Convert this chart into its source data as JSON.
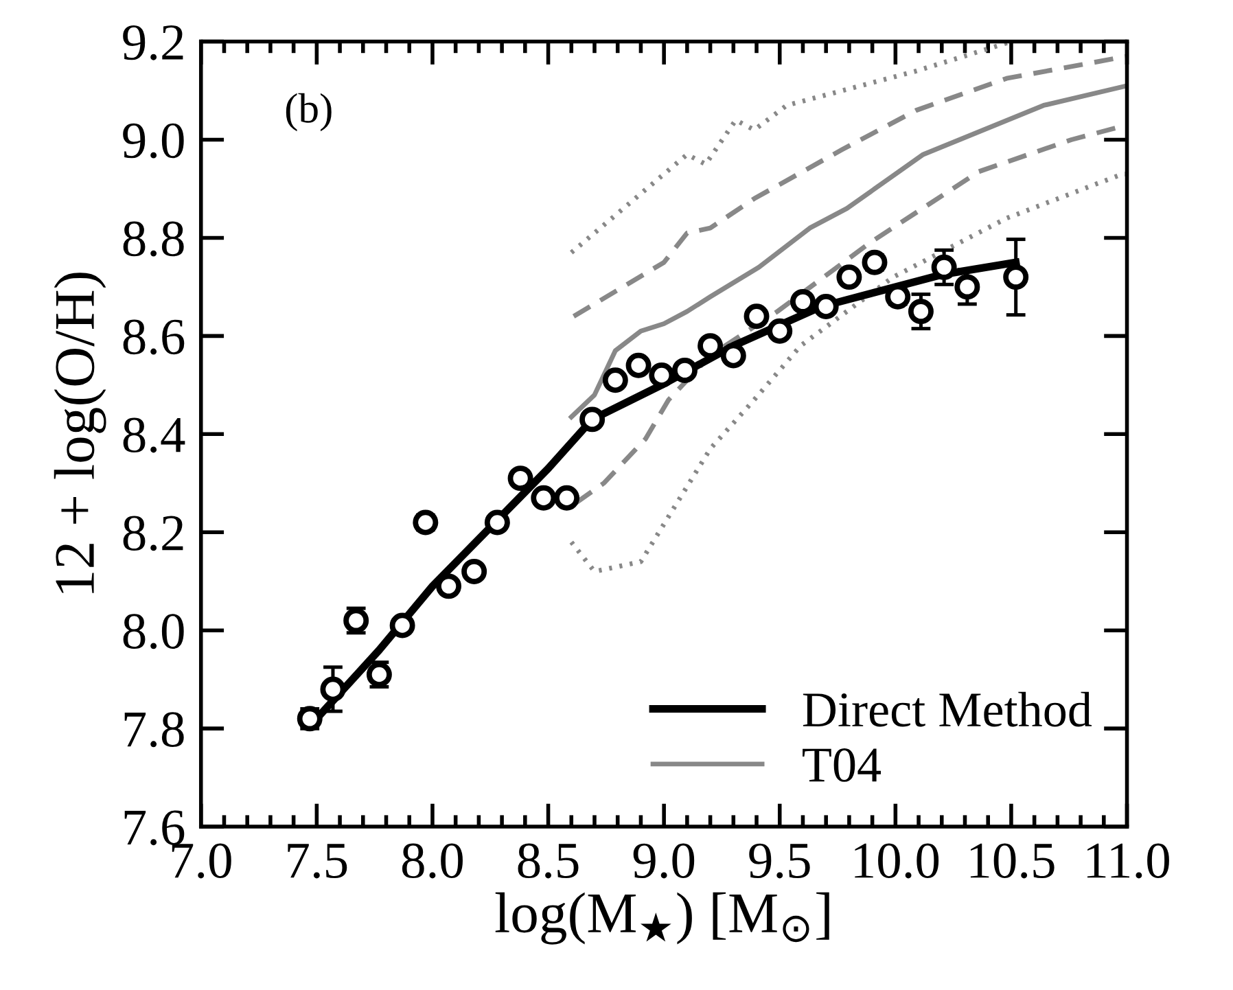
{
  "chart_data": {
    "type": "line",
    "xlabel": "log(M$_{★}$) [M$_{⊙}$]",
    "ylabel": "12 + log(O/H)",
    "xlim": [
      7.0,
      11.0
    ],
    "xticks": [
      {
        "value": 7.0,
        "label": "7.0"
      },
      7.5,
      {
        "value": 8.0,
        "label": "8.0"
      },
      8.5,
      {
        "value": 9.0,
        "label": "9.0"
      },
      9.5,
      {
        "value": 10.0,
        "label": "10.0"
      },
      10.5,
      {
        "value": 11.0,
        "label": "11.0"
      }
    ],
    "ylim": [
      7.6,
      9.2
    ],
    "yticks": [
      7.6,
      7.8,
      {
        "value": 8.0,
        "label": "8.0"
      },
      8.2,
      8.4,
      8.6,
      8.8,
      {
        "value": 9.0,
        "label": "9.0"
      },
      9.2
    ],
    "grid": false,
    "legend": "bottom right",
    "annotations": [
      "(b)"
    ],
    "series": [
      {
        "type": "line",
        "name": "T04",
        "color": "#888888",
        "line_style": "solid",
        "x": [
          8.6,
          8.7,
          8.79,
          8.9,
          9.0,
          9.1,
          9.2,
          9.41,
          9.63,
          9.79,
          10.12,
          10.64,
          11.0
        ],
        "values": [
          8.435,
          8.48,
          8.57,
          8.61,
          8.625,
          8.65,
          8.68,
          8.74,
          8.82,
          8.86,
          8.97,
          9.07,
          9.11
        ]
      },
      {
        "type": "line",
        "color": "#888888",
        "line_style": "dashed",
        "x": [
          8.61,
          9.0,
          9.1,
          9.2,
          9.39,
          9.77,
          10.09,
          10.48,
          11.0
        ],
        "values": [
          8.64,
          8.75,
          8.81,
          8.82,
          8.88,
          8.98,
          9.06,
          9.125,
          9.17
        ]
      },
      {
        "type": "line",
        "color": "#888888",
        "line_style": "dashed",
        "x": [
          8.62,
          8.74,
          8.92,
          9.02,
          9.2,
          9.49,
          9.89,
          10.36,
          10.76,
          11.0
        ],
        "values": [
          8.26,
          8.3,
          8.39,
          8.47,
          8.56,
          8.65,
          8.79,
          8.935,
          9.0,
          9.03
        ]
      },
      {
        "type": "line",
        "color": "#888888",
        "line_style": "dotted",
        "x": [
          8.6,
          8.9,
          9.1,
          9.18,
          9.31,
          9.39,
          9.53,
          10.09,
          10.5
        ],
        "values": [
          8.77,
          8.89,
          8.97,
          8.95,
          9.04,
          9.02,
          9.07,
          9.14,
          9.2
        ]
      },
      {
        "type": "line",
        "color": "#888888",
        "line_style": "dotted",
        "x": [
          8.6,
          8.7,
          8.9,
          9.2,
          9.39,
          9.59,
          9.99,
          10.48,
          10.98,
          11.0
        ],
        "values": [
          8.18,
          8.12,
          8.14,
          8.37,
          8.47,
          8.58,
          8.72,
          8.84,
          8.93,
          8.93
        ]
      },
      {
        "type": "line",
        "name": "Direct Method",
        "color": "#000000",
        "line_style": "solid",
        "x": [
          7.48,
          7.77,
          8.0,
          8.5,
          8.69,
          8.99,
          9.3,
          9.68,
          10.2,
          10.52
        ],
        "values": [
          7.81,
          7.96,
          8.09,
          8.33,
          8.43,
          8.5,
          8.58,
          8.66,
          8.725,
          8.75
        ]
      },
      {
        "type": "scatter",
        "color": "#000000",
        "marker": "circle",
        "x": [
          7.47,
          7.57,
          7.67,
          7.77,
          7.87,
          7.97,
          8.07,
          8.18,
          8.28,
          8.38,
          8.48,
          8.58,
          8.69,
          8.79,
          8.89,
          8.99,
          9.09,
          9.2,
          9.3,
          9.4,
          9.5,
          9.6,
          9.7,
          9.8,
          9.91,
          10.01,
          10.11,
          10.21,
          10.31,
          10.52
        ],
        "values": [
          7.82,
          7.88,
          8.02,
          7.91,
          8.01,
          8.22,
          8.09,
          8.12,
          8.22,
          8.31,
          8.27,
          8.27,
          8.43,
          8.51,
          8.54,
          8.52,
          8.53,
          8.58,
          8.56,
          8.64,
          8.61,
          8.67,
          8.66,
          8.72,
          8.75,
          8.68,
          8.65,
          8.74,
          8.7,
          8.72
        ],
        "errors": [
          0.02,
          0.045,
          0.025,
          0.025,
          null,
          0.015,
          null,
          null,
          null,
          null,
          null,
          null,
          null,
          null,
          null,
          null,
          null,
          null,
          null,
          null,
          null,
          null,
          null,
          null,
          0.015,
          0.015,
          0.035,
          0.035,
          0.035,
          0.077
        ]
      }
    ]
  }
}
